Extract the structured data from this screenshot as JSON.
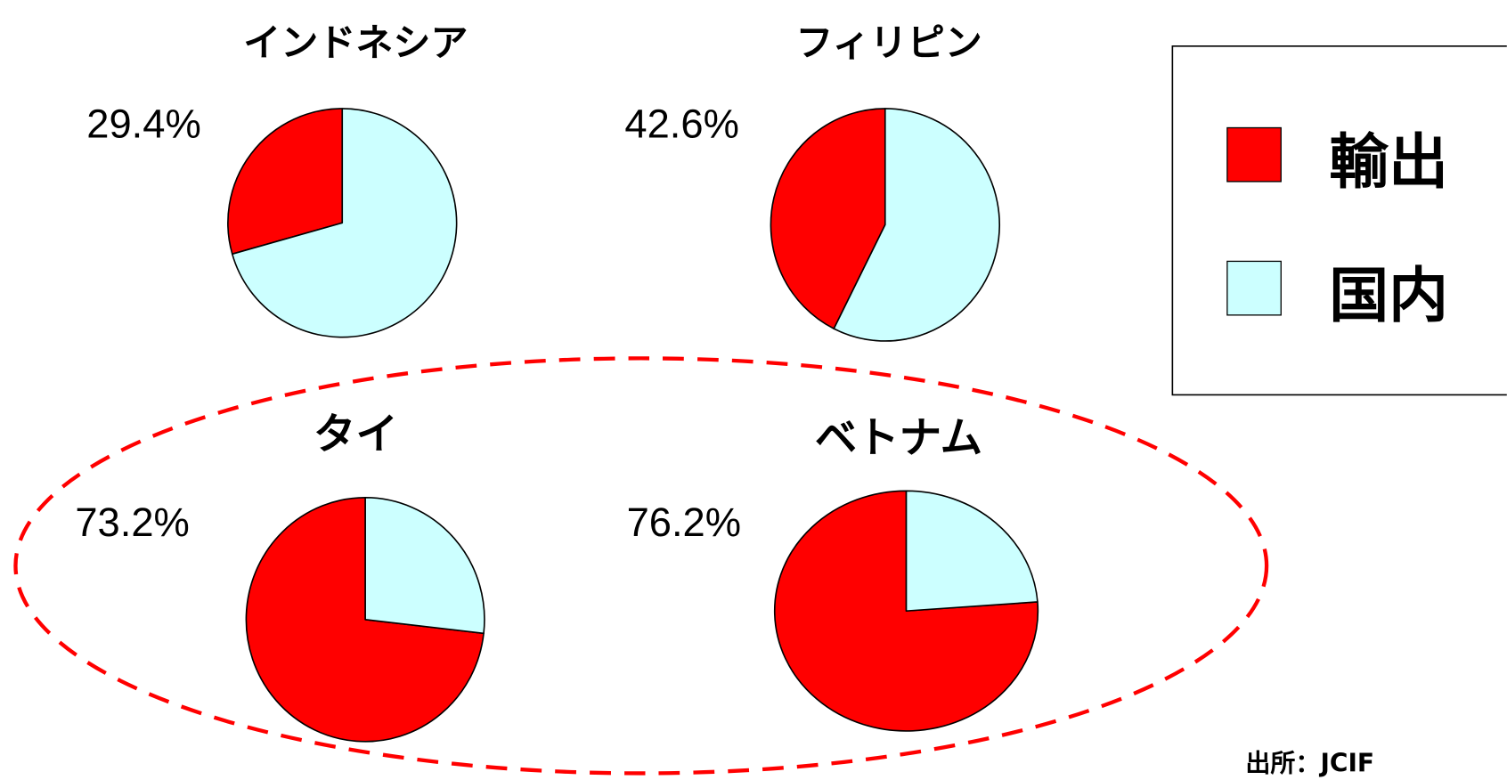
{
  "chart_data": {
    "type": "pie",
    "highlight_color": "#FF0000",
    "legend": {
      "placement": "right",
      "items": [
        {
          "name": "輸出",
          "color": "#FF0000"
        },
        {
          "name": "国内",
          "color": "#CCFFFF"
        }
      ]
    },
    "pies": [
      {
        "title": "インドネシア",
        "label": "29.4%",
        "values": [
          29.4,
          70.6
        ]
      },
      {
        "title": "フィリピン",
        "label": "42.6%",
        "values": [
          42.6,
          57.4
        ]
      },
      {
        "title": "タイ",
        "label": "73.2%",
        "values": [
          73.2,
          26.8
        ]
      },
      {
        "title": "ベトナム",
        "label": "76.2%",
        "values": [
          76.2,
          23.8
        ]
      }
    ]
  },
  "source": "出所：JCIF"
}
